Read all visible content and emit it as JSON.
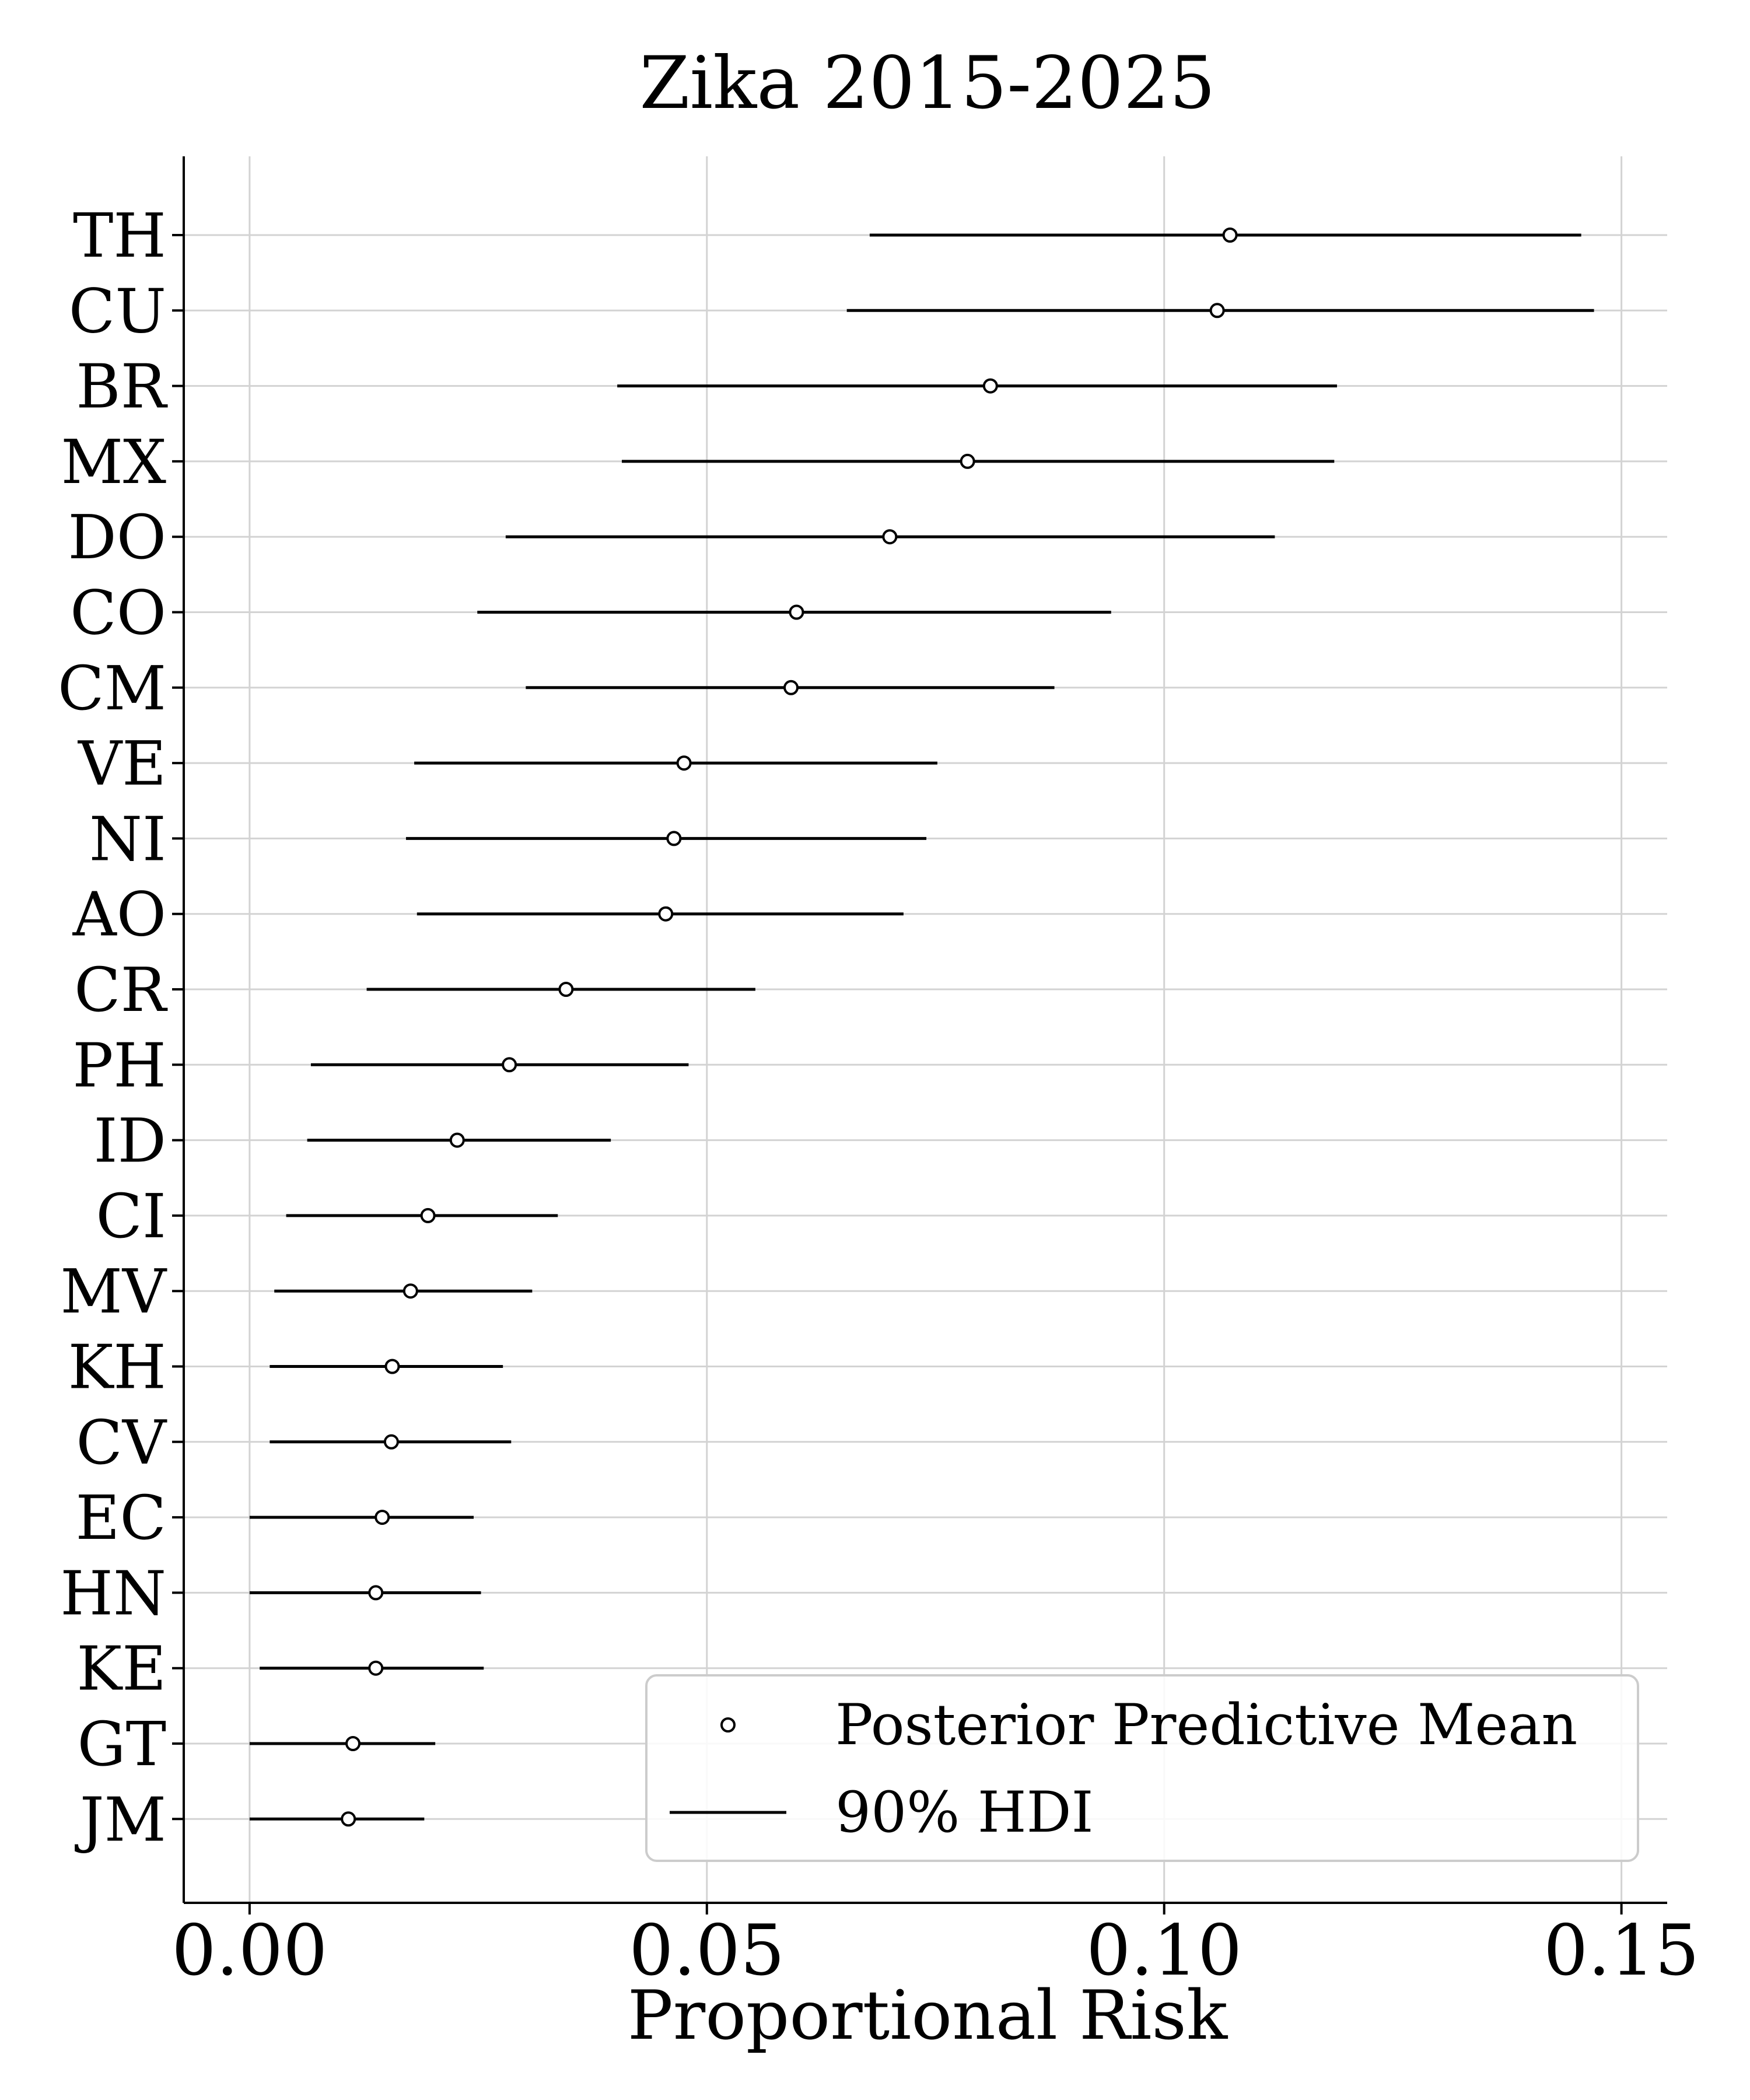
{
  "chart_data": {
    "type": "forest",
    "title": "Zika 2015-2025",
    "xlabel": "Proportional Risk",
    "ylabel": "",
    "xlim": [
      -0.0072,
      0.155
    ],
    "xticks": [
      0.0,
      0.05,
      0.1,
      0.15
    ],
    "xtick_labels": [
      "0.00",
      "0.05",
      "0.10",
      "0.15"
    ],
    "grid": true,
    "legend_position": "bottom-right",
    "legend": {
      "mean_label": "Posterior Predictive Mean",
      "interval_label": "90% HDI"
    },
    "categories": [
      "TH",
      "CU",
      "BR",
      "MX",
      "DO",
      "CO",
      "CM",
      "VE",
      "NI",
      "AO",
      "CR",
      "PH",
      "ID",
      "CI",
      "MV",
      "KH",
      "CV",
      "EC",
      "HN",
      "KE",
      "GT",
      "JM"
    ],
    "means": [
      0.1072,
      0.1058,
      0.081,
      0.0785,
      0.07,
      0.0598,
      0.0592,
      0.0475,
      0.0464,
      0.0455,
      0.0346,
      0.0284,
      0.0227,
      0.0195,
      0.0176,
      0.0156,
      0.0155,
      0.0145,
      0.0138,
      0.0138,
      0.0113,
      0.0108
    ],
    "hdi_low": [
      0.0678,
      0.0653,
      0.0402,
      0.0407,
      0.028,
      0.0249,
      0.0302,
      0.018,
      0.0171,
      0.0183,
      0.0128,
      0.0067,
      0.0063,
      0.004,
      0.0027,
      0.0022,
      0.0022,
      0.0,
      0.0,
      0.0011,
      0.0,
      0.0
    ],
    "hdi_high": [
      0.1456,
      0.147,
      0.1189,
      0.1186,
      0.1121,
      0.0942,
      0.088,
      0.0752,
      0.074,
      0.0715,
      0.0553,
      0.048,
      0.0395,
      0.0337,
      0.0309,
      0.0277,
      0.0286,
      0.0245,
      0.0253,
      0.0256,
      0.0203,
      0.0191
    ],
    "colors": {
      "line": "#000000",
      "marker_fill": "#ffffff",
      "grid": "#d3d3d3"
    }
  }
}
